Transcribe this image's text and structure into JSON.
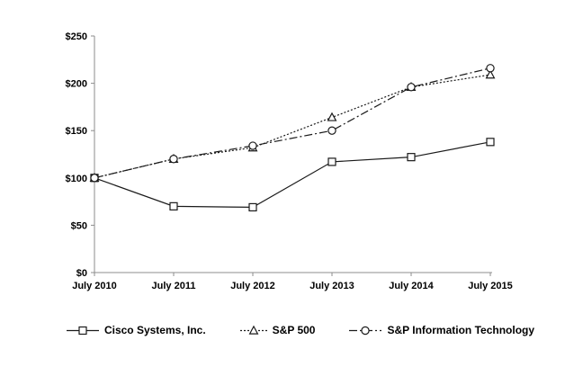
{
  "chart_data": {
    "type": "line",
    "categories": [
      "July 2010",
      "July 2011",
      "July 2012",
      "July 2013",
      "July 2014",
      "July 2015"
    ],
    "series": [
      {
        "name": "Cisco Systems, Inc.",
        "marker": "square",
        "line_style": "solid",
        "values": [
          100,
          70,
          69,
          117,
          122,
          138
        ]
      },
      {
        "name": "S&P 500",
        "marker": "triangle",
        "line_style": "dotted",
        "values": [
          100,
          120,
          132,
          164,
          196,
          209
        ]
      },
      {
        "name": "S&P Information Technology",
        "marker": "circle",
        "line_style": "dashdot",
        "values": [
          100,
          120,
          134,
          150,
          196,
          216
        ]
      }
    ],
    "y_ticks": [
      {
        "value": 0,
        "label": "$0"
      },
      {
        "value": 50,
        "label": "$50"
      },
      {
        "value": 100,
        "label": "$100"
      },
      {
        "value": 150,
        "label": "$150"
      },
      {
        "value": 200,
        "label": "$200"
      },
      {
        "value": 250,
        "label": "$250"
      }
    ],
    "ylim": [
      0,
      250
    ],
    "grid": false,
    "legend_position": "bottom",
    "colors": {
      "series": "#1a1a1a",
      "marker_fill": "#ffffff",
      "axis": "#8c8c8c",
      "text": "#000000",
      "background": "#ffffff"
    }
  }
}
